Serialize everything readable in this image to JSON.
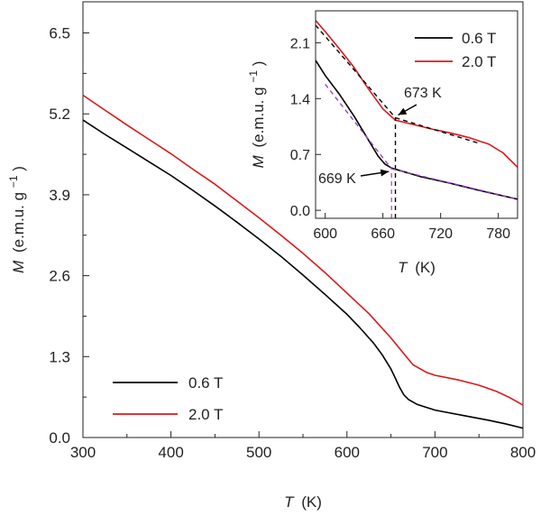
{
  "chart_data": [
    {
      "type": "line",
      "title": "",
      "xlabel_italic": "T",
      "xlabel_unit": "(K)",
      "ylabel_italic": "M",
      "ylabel_unit": "(e.m.u. g",
      "ylabel_exp": "−1",
      "ylabel_close": ")",
      "xlim": [
        300,
        800
      ],
      "ylim": [
        0.0,
        7.0
      ],
      "xticks": [
        "300",
        "400",
        "500",
        "600",
        "700",
        "800"
      ],
      "yticks": [
        "0.0",
        "1.3",
        "2.6",
        "3.9",
        "5.2",
        "6.5"
      ],
      "grid": false,
      "legend_position": "bottom-left",
      "series": [
        {
          "name": "0.6 T",
          "color": "#000000",
          "x": [
            300,
            325,
            350,
            375,
            400,
            425,
            450,
            475,
            500,
            525,
            550,
            575,
            600,
            615,
            630,
            640,
            650,
            655,
            660,
            665,
            670,
            680,
            700,
            730,
            760,
            780,
            800
          ],
          "y": [
            5.1,
            4.87,
            4.65,
            4.43,
            4.21,
            3.97,
            3.72,
            3.46,
            3.19,
            2.91,
            2.61,
            2.3,
            1.98,
            1.76,
            1.52,
            1.33,
            1.1,
            0.95,
            0.8,
            0.68,
            0.61,
            0.53,
            0.44,
            0.36,
            0.28,
            0.22,
            0.15
          ]
        },
        {
          "name": "2.0 T",
          "color": "#d7191c",
          "x": [
            300,
            325,
            350,
            375,
            400,
            425,
            450,
            475,
            500,
            525,
            550,
            575,
            600,
            625,
            650,
            665,
            675,
            690,
            700,
            725,
            750,
            770,
            785,
            800
          ],
          "y": [
            5.5,
            5.26,
            5.02,
            4.79,
            4.56,
            4.31,
            4.07,
            3.8,
            3.53,
            3.25,
            2.96,
            2.65,
            2.32,
            1.99,
            1.6,
            1.34,
            1.17,
            1.05,
            1.0,
            0.93,
            0.84,
            0.74,
            0.64,
            0.52
          ]
        }
      ]
    },
    {
      "type": "line",
      "title": "",
      "xlabel_italic": "T",
      "xlabel_unit": "(K)",
      "ylabel_italic": "M",
      "ylabel_unit": "(e.m.u. g",
      "ylabel_exp": "−1",
      "ylabel_close": ")",
      "xlim": [
        590,
        800
      ],
      "ylim": [
        -0.1,
        2.5
      ],
      "xticks": [
        "600",
        "660",
        "720",
        "780"
      ],
      "yticks": [
        "0.0",
        "0.7",
        "1.4",
        "2.1"
      ],
      "grid": false,
      "legend_position": "top-right",
      "series": [
        {
          "name": "0.6 T",
          "color": "#000000",
          "x": [
            590,
            600,
            615,
            630,
            645,
            655,
            662,
            669,
            680,
            700,
            730,
            760,
            800
          ],
          "y": [
            1.88,
            1.69,
            1.45,
            1.18,
            0.88,
            0.68,
            0.58,
            0.53,
            0.49,
            0.42,
            0.34,
            0.25,
            0.14
          ]
        },
        {
          "name": "2.0 T",
          "color": "#d7191c",
          "x": [
            590,
            600,
            615,
            630,
            645,
            660,
            673,
            690,
            710,
            730,
            750,
            770,
            785,
            800
          ],
          "y": [
            2.38,
            2.24,
            2.02,
            1.79,
            1.52,
            1.27,
            1.13,
            1.08,
            1.02,
            0.97,
            0.91,
            0.83,
            0.72,
            0.54
          ]
        }
      ],
      "guides": [
        {
          "color": "#000000",
          "x": [
            590,
            673
          ],
          "y": [
            2.32,
            1.16
          ]
        },
        {
          "color": "#000000",
          "x": [
            673,
            760
          ],
          "y": [
            1.16,
            0.84
          ]
        },
        {
          "color": "#000000",
          "x": [
            673,
            673
          ],
          "y": [
            -0.1,
            1.16
          ]
        },
        {
          "color": "#9b3fc0",
          "x": [
            600,
            669
          ],
          "y": [
            1.58,
            0.52
          ]
        },
        {
          "color": "#9b3fc0",
          "x": [
            669,
            800
          ],
          "y": [
            0.52,
            0.14
          ]
        },
        {
          "color": "#c05aa8",
          "x": [
            669,
            669
          ],
          "y": [
            -0.1,
            0.52
          ]
        }
      ],
      "annotations": [
        {
          "text": "673 K",
          "x": 673,
          "y": 1.16
        },
        {
          "text": "669 K",
          "x": 669,
          "y": 0.52
        }
      ]
    }
  ]
}
